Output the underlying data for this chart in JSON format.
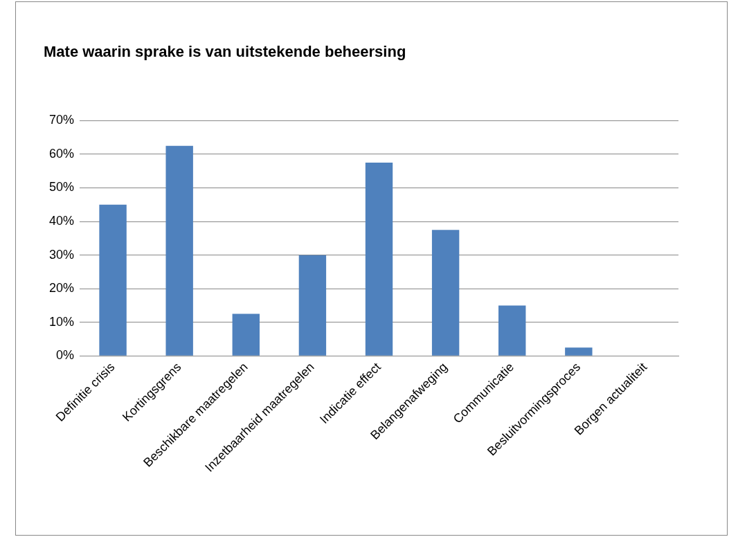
{
  "chart_data": {
    "type": "bar",
    "title": "Mate waarin sprake is van uitstekende beheersing",
    "categories": [
      "Definitie crisis",
      "Kortingsgrens",
      "Beschikbare maatregelen",
      "Inzetbaarheid maatregelen",
      "Indicatie effect",
      "Belangenafweging",
      "Communicatie",
      "Besluitvormingsproces",
      "Borgen actualiteit"
    ],
    "values": [
      45,
      62.5,
      12.5,
      30,
      57.5,
      37.5,
      15,
      2.5,
      0
    ],
    "color": "#4f81bd",
    "ylim": [
      0,
      70
    ],
    "yticks": [
      {
        "value": 0,
        "label": "0%"
      },
      {
        "value": 10,
        "label": "10%"
      },
      {
        "value": 20,
        "label": "20%"
      },
      {
        "value": 30,
        "label": "30%"
      },
      {
        "value": 40,
        "label": "40%"
      },
      {
        "value": 50,
        "label": "50%"
      },
      {
        "value": 60,
        "label": "60%"
      },
      {
        "value": 70,
        "label": "70%"
      }
    ],
    "grid": "y",
    "legend": false
  }
}
